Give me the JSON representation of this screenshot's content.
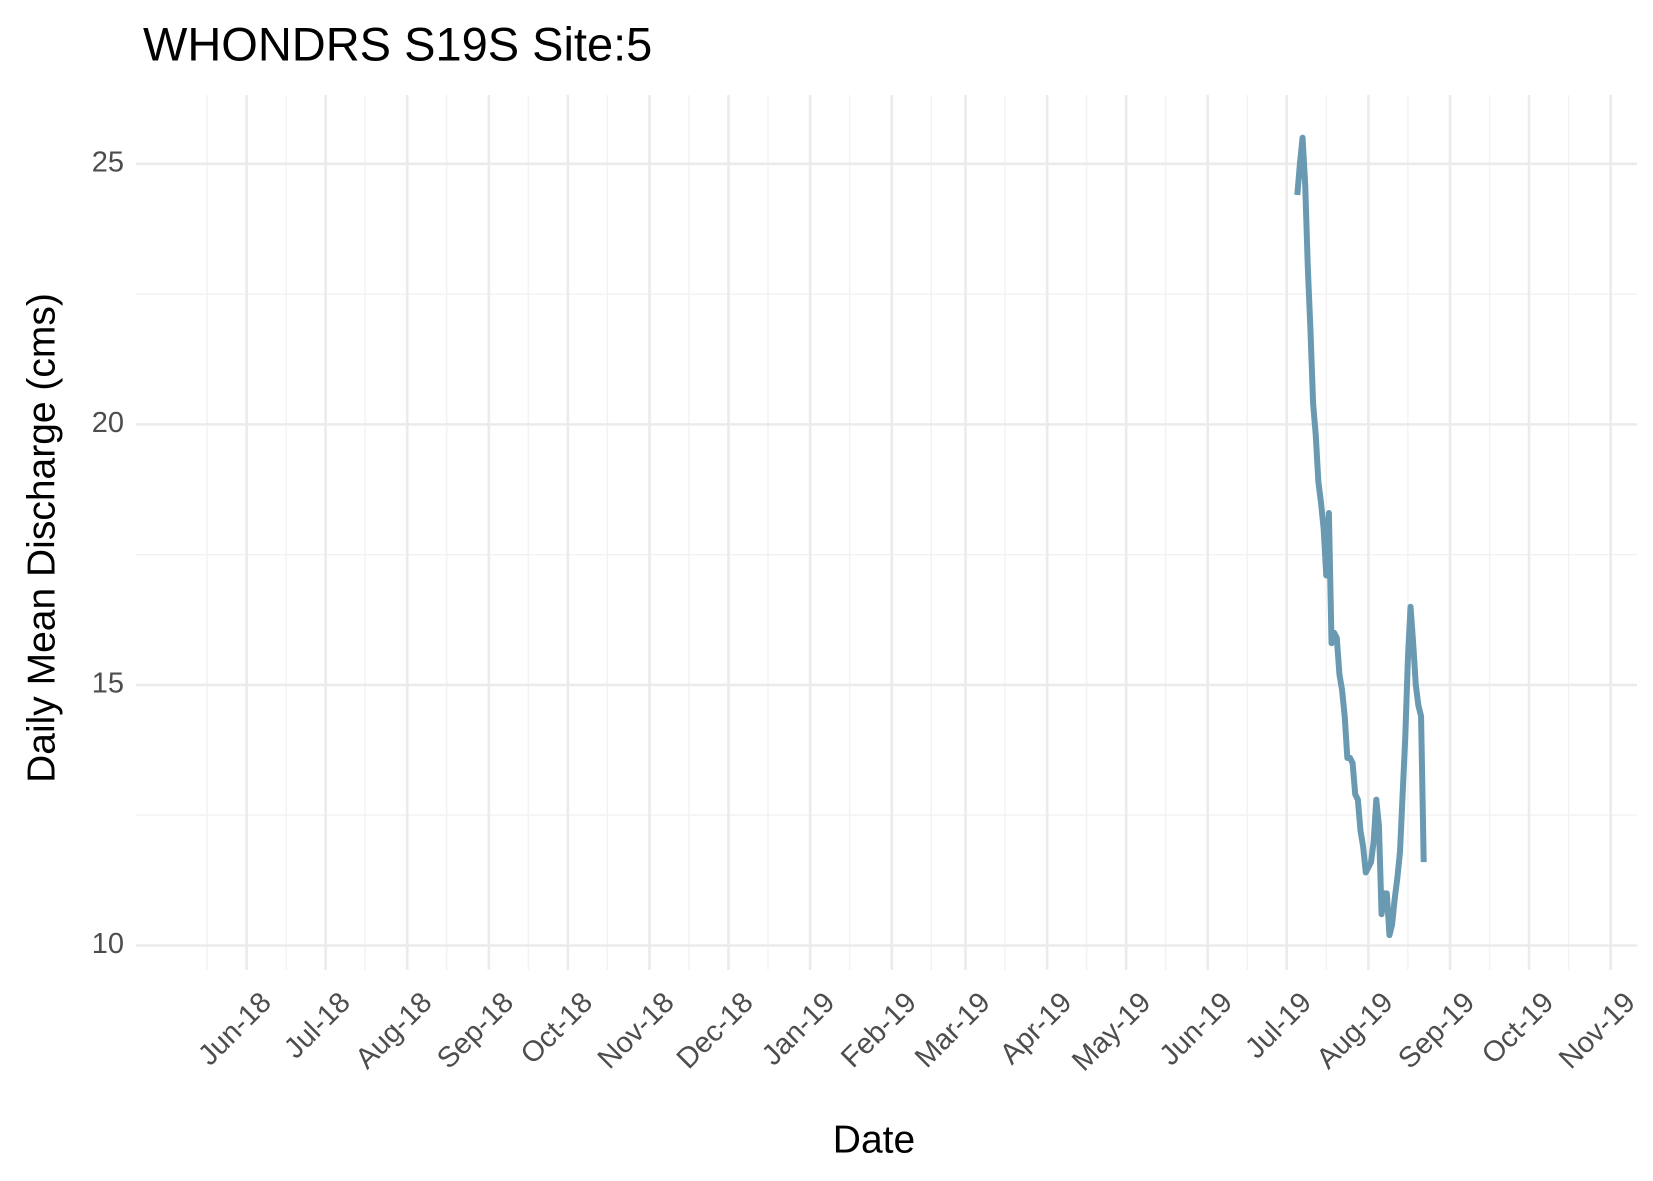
{
  "chart_data": {
    "type": "line",
    "title": "WHONDRS S19S Site:5",
    "x_label": "Date",
    "y_label": "Daily Mean Discharge (cms)",
    "x": [
      "2019-07-05",
      "2019-07-06",
      "2019-07-07",
      "2019-07-08",
      "2019-07-09",
      "2019-07-10",
      "2019-07-11",
      "2019-07-12",
      "2019-07-13",
      "2019-07-14",
      "2019-07-15",
      "2019-07-16",
      "2019-07-17",
      "2019-07-18",
      "2019-07-19",
      "2019-07-20",
      "2019-07-21",
      "2019-07-22",
      "2019-07-23",
      "2019-07-24",
      "2019-07-25",
      "2019-07-26",
      "2019-07-27",
      "2019-07-28",
      "2019-07-29",
      "2019-07-30",
      "2019-07-31",
      "2019-08-01",
      "2019-08-02",
      "2019-08-03",
      "2019-08-04",
      "2019-08-05",
      "2019-08-06",
      "2019-08-07",
      "2019-08-08",
      "2019-08-09",
      "2019-08-10",
      "2019-08-11",
      "2019-08-12",
      "2019-08-13",
      "2019-08-14",
      "2019-08-15",
      "2019-08-16",
      "2019-08-17",
      "2019-08-18",
      "2019-08-19",
      "2019-08-20",
      "2019-08-21",
      "2019-08-22"
    ],
    "values": [
      24.4,
      25.0,
      25.5,
      24.6,
      23.0,
      21.8,
      20.4,
      19.8,
      18.9,
      18.5,
      18.0,
      17.1,
      18.3,
      15.8,
      16.0,
      15.9,
      15.2,
      14.9,
      14.4,
      13.6,
      13.6,
      13.5,
      12.9,
      12.8,
      12.2,
      11.9,
      11.4,
      11.5,
      11.6,
      12.0,
      12.8,
      12.3,
      10.6,
      11.0,
      11.0,
      10.2,
      10.4,
      10.9,
      11.3,
      11.8,
      12.9,
      14.0,
      15.5,
      16.5,
      15.8,
      15.0,
      14.6,
      14.4,
      11.6
    ],
    "color": "#6a9ab2",
    "xlim": [
      "2018-04-20",
      "2019-11-11"
    ],
    "xticks": [
      {
        "value": "2018-06-01",
        "label": "Jun-18"
      },
      {
        "value": "2018-07-01",
        "label": "Jul-18"
      },
      {
        "value": "2018-08-01",
        "label": "Aug-18"
      },
      {
        "value": "2018-09-01",
        "label": "Sep-18"
      },
      {
        "value": "2018-10-01",
        "label": "Oct-18"
      },
      {
        "value": "2018-11-01",
        "label": "Nov-18"
      },
      {
        "value": "2018-12-01",
        "label": "Dec-18"
      },
      {
        "value": "2019-01-01",
        "label": "Jan-19"
      },
      {
        "value": "2019-02-01",
        "label": "Feb-19"
      },
      {
        "value": "2019-03-01",
        "label": "Mar-19"
      },
      {
        "value": "2019-04-01",
        "label": "Apr-19"
      },
      {
        "value": "2019-05-01",
        "label": "May-19"
      },
      {
        "value": "2019-06-01",
        "label": "Jun-19"
      },
      {
        "value": "2019-07-01",
        "label": "Jul-19"
      },
      {
        "value": "2019-08-01",
        "label": "Aug-19"
      },
      {
        "value": "2019-09-01",
        "label": "Sep-19"
      },
      {
        "value": "2019-10-01",
        "label": "Oct-19"
      },
      {
        "value": "2019-11-01",
        "label": "Nov-19"
      }
    ],
    "ylim": [
      9.53,
      26.32
    ],
    "yticks": [
      10,
      15,
      20,
      25
    ],
    "grid": true
  }
}
